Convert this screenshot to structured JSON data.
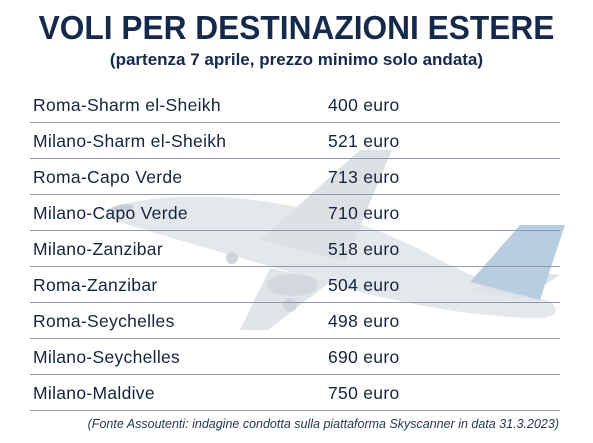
{
  "chart_data": {
    "type": "table",
    "title": "VOLI PER DESTINAZIONI ESTERE",
    "subtitle": "(partenza 7 aprile, prezzo minimo solo andata)",
    "rows": [
      {
        "route": "Roma-Sharm el-Sheikh",
        "price": "400 euro"
      },
      {
        "route": "Milano-Sharm el-Sheikh",
        "price": "521 euro"
      },
      {
        "route": "Roma-Capo Verde",
        "price": "713 euro"
      },
      {
        "route": "Milano-Capo Verde",
        "price": "710 euro"
      },
      {
        "route": "Milano-Zanzibar",
        "price": "518 euro"
      },
      {
        "route": "Roma-Zanzibar",
        "price": "504 euro"
      },
      {
        "route": "Roma-Seychelles",
        "price": "498 euro"
      },
      {
        "route": "Milano-Seychelles",
        "price": "690 euro"
      },
      {
        "route": "Milano-Maldive",
        "price": "750 euro"
      }
    ],
    "values": [
      400,
      521,
      713,
      710,
      518,
      504,
      498,
      690,
      750
    ],
    "source": "(Fonte Assoutenti: indagine condotta sulla piattaforma Skyscanner in data 31.3.2023)"
  },
  "colors": {
    "title": "#15294a",
    "text": "#16243d",
    "divider": "#8e9aac",
    "plane": "#e3e6ea",
    "tail": "#b9cde2"
  },
  "illustration": "airplane-icon"
}
